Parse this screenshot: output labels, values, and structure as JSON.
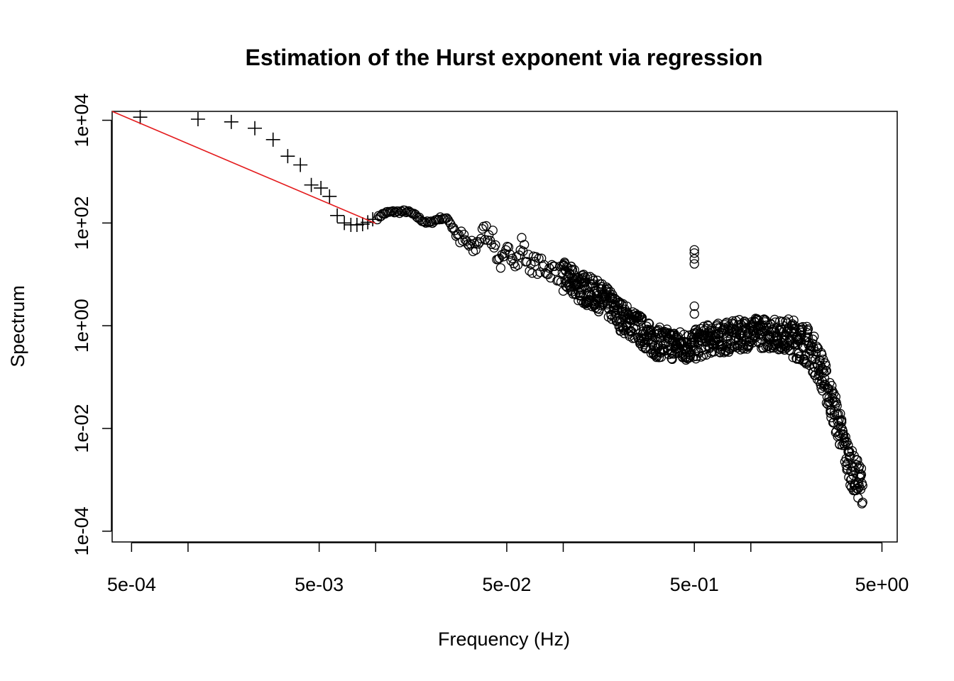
{
  "chart_data": {
    "type": "scatter",
    "title": "Estimation of the Hurst exponent via regression",
    "xlabel": "Frequency (Hz)",
    "ylabel": "Spectrum",
    "x_scale": "log10",
    "y_scale": "log10",
    "xlim": [
      0.000394,
      6.03
    ],
    "ylim": [
      6.17e-05,
      14900
    ],
    "x_ticks": [
      {
        "value": 0.0005,
        "label": "5e-04"
      },
      {
        "value": 0.001,
        "label": ""
      },
      {
        "value": 0.005,
        "label": "5e-03"
      },
      {
        "value": 0.01,
        "label": ""
      },
      {
        "value": 0.05,
        "label": "5e-02"
      },
      {
        "value": 0.1,
        "label": ""
      },
      {
        "value": 0.5,
        "label": "5e-01"
      },
      {
        "value": 1,
        "label": ""
      },
      {
        "value": 5,
        "label": "5e+00"
      }
    ],
    "y_ticks": [
      {
        "value": 0.0001,
        "label": "1e-04"
      },
      {
        "value": 0.01,
        "label": "1e-02"
      },
      {
        "value": 1,
        "label": "1e+00"
      },
      {
        "value": 100,
        "label": "1e+02"
      },
      {
        "value": 10000,
        "label": "1e+04"
      }
    ],
    "grid": false,
    "legend": "none",
    "colors": {
      "points": "#000000",
      "fit_line": "#e41a1c"
    },
    "series": [
      {
        "marker": "plus",
        "points": [
          [
            0.000556,
            11500
          ],
          [
            0.00113,
            10500
          ],
          [
            0.0017,
            9300
          ],
          [
            0.00227,
            7000
          ],
          [
            0.00284,
            4200
          ],
          [
            0.0034,
            2000
          ],
          [
            0.00397,
            1350
          ],
          [
            0.00454,
            550
          ],
          [
            0.00511,
            480
          ],
          [
            0.00568,
            330
          ],
          [
            0.00624,
            140
          ],
          [
            0.00681,
            100
          ],
          [
            0.00738,
            92
          ],
          [
            0.00795,
            92
          ],
          [
            0.00852,
            95
          ],
          [
            0.00908,
            103
          ],
          [
            0.00965,
            118
          ]
        ]
      },
      {
        "marker": "circle",
        "profile": [
          [
            0.0102,
            125
          ],
          [
            0.0108,
            145
          ],
          [
            0.0115,
            160
          ],
          [
            0.0125,
            165
          ],
          [
            0.0135,
            165
          ],
          [
            0.0145,
            170
          ],
          [
            0.0155,
            155
          ],
          [
            0.0165,
            135
          ],
          [
            0.0175,
            115
          ],
          [
            0.0185,
            103
          ],
          [
            0.0195,
            100
          ],
          [
            0.0205,
            110
          ],
          [
            0.0215,
            120
          ],
          [
            0.0225,
            125
          ],
          [
            0.0235,
            122
          ],
          [
            0.0245,
            113
          ],
          [
            0.026,
            90
          ],
          [
            0.027,
            60
          ],
          [
            0.029,
            47
          ],
          [
            0.031,
            38
          ],
          [
            0.033,
            30
          ],
          [
            0.035,
            42
          ],
          [
            0.037,
            60
          ],
          [
            0.039,
            68
          ],
          [
            0.041,
            60
          ],
          [
            0.043,
            40
          ],
          [
            0.045,
            20
          ],
          [
            0.048,
            16
          ],
          [
            0.05,
            24
          ],
          [
            0.052,
            30
          ],
          [
            0.055,
            22
          ],
          [
            0.058,
            18
          ],
          [
            0.06,
            45
          ],
          [
            0.063,
            22
          ],
          [
            0.066,
            16
          ],
          [
            0.07,
            16
          ],
          [
            0.08,
            13
          ],
          [
            0.09,
            12
          ],
          [
            0.1,
            9
          ],
          [
            0.12,
            6
          ],
          [
            0.14,
            4.5
          ],
          [
            0.16,
            3.5
          ],
          [
            0.18,
            2.4
          ],
          [
            0.2,
            1.6
          ],
          [
            0.25,
            0.9
          ],
          [
            0.3,
            0.5
          ],
          [
            0.35,
            0.45
          ],
          [
            0.4,
            0.42
          ],
          [
            0.45,
            0.4
          ],
          [
            0.5,
            0.42
          ],
          [
            0.6,
            0.55
          ],
          [
            0.7,
            0.58
          ],
          [
            0.8,
            0.62
          ],
          [
            0.9,
            0.68
          ],
          [
            1.0,
            0.72
          ],
          [
            1.2,
            0.72
          ],
          [
            1.4,
            0.68
          ],
          [
            1.6,
            0.62
          ],
          [
            1.8,
            0.52
          ],
          [
            2.0,
            0.42
          ],
          [
            2.2,
            0.25
          ],
          [
            2.4,
            0.13
          ],
          [
            2.6,
            0.05
          ],
          [
            2.8,
            0.022
          ],
          [
            3.0,
            0.009
          ],
          [
            3.2,
            0.0035
          ],
          [
            3.4,
            0.0018
          ],
          [
            3.6,
            0.0012
          ],
          [
            3.8,
            0.0009
          ],
          [
            3.95,
            0.0008
          ]
        ],
        "outliers": [
          [
            0.5,
            30
          ],
          [
            0.5,
            26
          ],
          [
            0.5,
            20
          ],
          [
            0.5,
            16
          ],
          [
            0.5,
            2.4
          ],
          [
            0.5,
            1.7
          ]
        ]
      }
    ],
    "fit_line": {
      "label": "",
      "points": [
        [
          0.000394,
          14900
        ],
        [
          0.01,
          98
        ]
      ]
    }
  }
}
